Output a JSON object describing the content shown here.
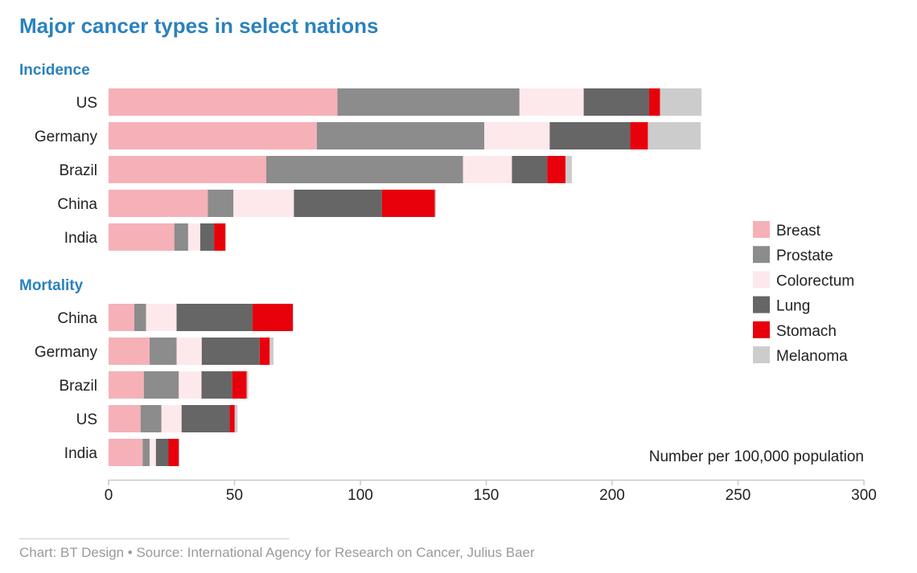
{
  "chart_data": {
    "type": "bar",
    "orientation": "horizontal",
    "stacked": true,
    "title": "Major cancer types in select nations",
    "xlabel": "Number per 100,000 population",
    "xlim": [
      0,
      300
    ],
    "xticks": [
      0,
      50,
      100,
      150,
      200,
      250,
      300
    ],
    "xtick_labels": [
      "0",
      "50",
      "100",
      "150",
      "200",
      "250",
      "300"
    ],
    "grid": false,
    "legend_position": "right",
    "series": [
      {
        "name": "Breast",
        "color": "#f5b1b7"
      },
      {
        "name": "Prostate",
        "color": "#8c8c8c"
      },
      {
        "name": "Colorectum",
        "color": "#fde9ec"
      },
      {
        "name": "Lung",
        "color": "#666666"
      },
      {
        "name": "Stomach",
        "color": "#e8000b"
      },
      {
        "name": "Melanoma",
        "color": "#cccccc"
      }
    ],
    "panels": [
      {
        "label": "Incidence",
        "rows": [
          {
            "country": "US",
            "values": [
              90.9,
              72.3,
              25.5,
              26.0,
              4.3,
              16.5
            ]
          },
          {
            "country": "Germany",
            "values": [
              82.7,
              66.5,
              26.0,
              32.0,
              7.0,
              21.0
            ]
          },
          {
            "country": "Brazil",
            "values": [
              62.6,
              78.2,
              19.4,
              14.0,
              7.3,
              2.5
            ]
          },
          {
            "country": "China",
            "values": [
              39.4,
              10.2,
              24.0,
              35.0,
              21.0,
              0.4
            ]
          },
          {
            "country": "India",
            "values": [
              26.1,
              5.5,
              4.8,
              5.5,
              4.5,
              0.3
            ]
          }
        ]
      },
      {
        "label": "Mortality",
        "rows": [
          {
            "country": "China",
            "values": [
              10.2,
              4.7,
              12.1,
              30.2,
              16.0,
              0.2
            ]
          },
          {
            "country": "Germany",
            "values": [
              16.3,
              10.7,
              10.0,
              23.0,
              4.0,
              1.5
            ]
          },
          {
            "country": "Brazil",
            "values": [
              14.0,
              13.9,
              9.0,
              12.2,
              5.7,
              0.7
            ]
          },
          {
            "country": "US",
            "values": [
              12.7,
              8.3,
              8.0,
              19.1,
              2.0,
              1.1
            ]
          },
          {
            "country": "India",
            "values": [
              13.5,
              2.8,
              2.5,
              5.0,
              4.1,
              0.2
            ]
          }
        ]
      }
    ]
  },
  "footer": {
    "source": "Chart: BT Design • Source: International Agency for Research on Cancer, Julius Baer"
  },
  "colors": {
    "title": "#2a82bd",
    "text": "#222222",
    "axis": "#c9c9c9",
    "muted": "#9a9a9a"
  }
}
